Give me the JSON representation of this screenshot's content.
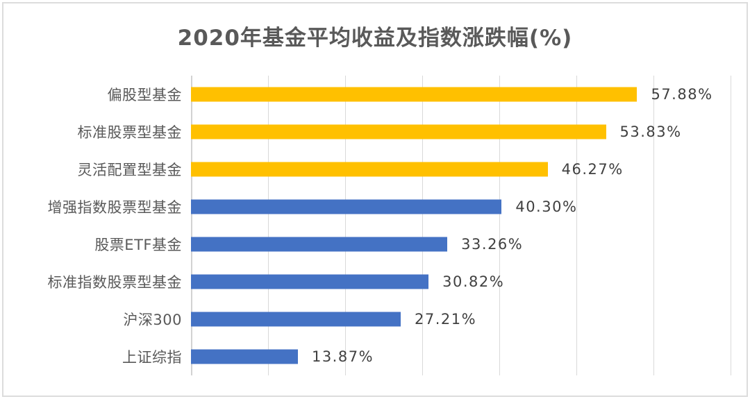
{
  "chart_data": {
    "type": "bar",
    "orientation": "horizontal",
    "title": "2020年基金平均收益及指数涨跌幅(%)",
    "categories": [
      "偏股型基金",
      "标准股票型基金",
      "灵活配置型基金",
      "增强指数股票型基金",
      "股票ETF基金",
      "标准指数股票型基金",
      "沪深300",
      "上证综指"
    ],
    "values": [
      57.88,
      53.83,
      46.27,
      40.3,
      33.26,
      30.82,
      27.21,
      13.87
    ],
    "value_labels": [
      "57.88%",
      "53.83%",
      "46.27%",
      "40.30%",
      "33.26%",
      "30.82%",
      "27.21%",
      "13.87%"
    ],
    "bar_colors": [
      "#FFC000",
      "#FFC000",
      "#FFC000",
      "#4472C4",
      "#4472C4",
      "#4472C4",
      "#4472C4",
      "#4472C4"
    ],
    "xlim": [
      0,
      70
    ],
    "grid_interval": 10,
    "grid": true,
    "legend": "none",
    "axis_tick_labels_visible": false,
    "colors": {
      "gold_series": "#FFC000",
      "blue_series": "#4472C4",
      "title_text": "#595959",
      "category_text": "#595959",
      "value_text": "#404040",
      "gridline": "#d9d9d9",
      "axis_line": "#d2d2d2",
      "frame_border": "#dcdcdc",
      "background": "#ffffff"
    }
  }
}
